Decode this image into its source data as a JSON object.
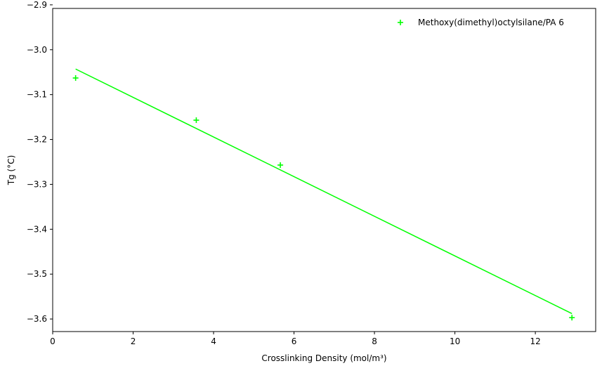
{
  "chart_data": {
    "type": "scatter",
    "title": "",
    "xlabel": "Crosslinking Density (mol/m³)",
    "ylabel": "Tg (°C)",
    "xlim": [
      0.0,
      13.5
    ],
    "ylim": [
      -3.628,
      -2.908
    ],
    "x_ticks": [
      0,
      2,
      4,
      6,
      8,
      10,
      12
    ],
    "x_tick_labels": [
      "0",
      "2",
      "4",
      "6",
      "8",
      "10",
      "12"
    ],
    "y_ticks": [
      -2.9,
      -3.0,
      -3.1,
      -3.2,
      -3.3,
      -3.4,
      -3.5,
      -3.6
    ],
    "y_tick_labels": [
      "−2.9",
      "−3.0",
      "−3.1",
      "−3.2",
      "−3.3",
      "−3.4",
      "−3.5",
      "−3.6"
    ],
    "grid": false,
    "legend_position": "top-right",
    "series": [
      {
        "name": "Methoxy(dimethyl)octylsilane/PA 6",
        "marker": "plus",
        "color": "#00ff00",
        "x": [
          0.57,
          3.57,
          5.66,
          12.91
        ],
        "y": [
          -3.063,
          -3.157,
          -3.257,
          -3.597
        ]
      }
    ],
    "fit_line": {
      "color": "#00ff00",
      "x": [
        0.57,
        12.91
      ],
      "y": [
        -3.043,
        -3.588
      ]
    }
  }
}
